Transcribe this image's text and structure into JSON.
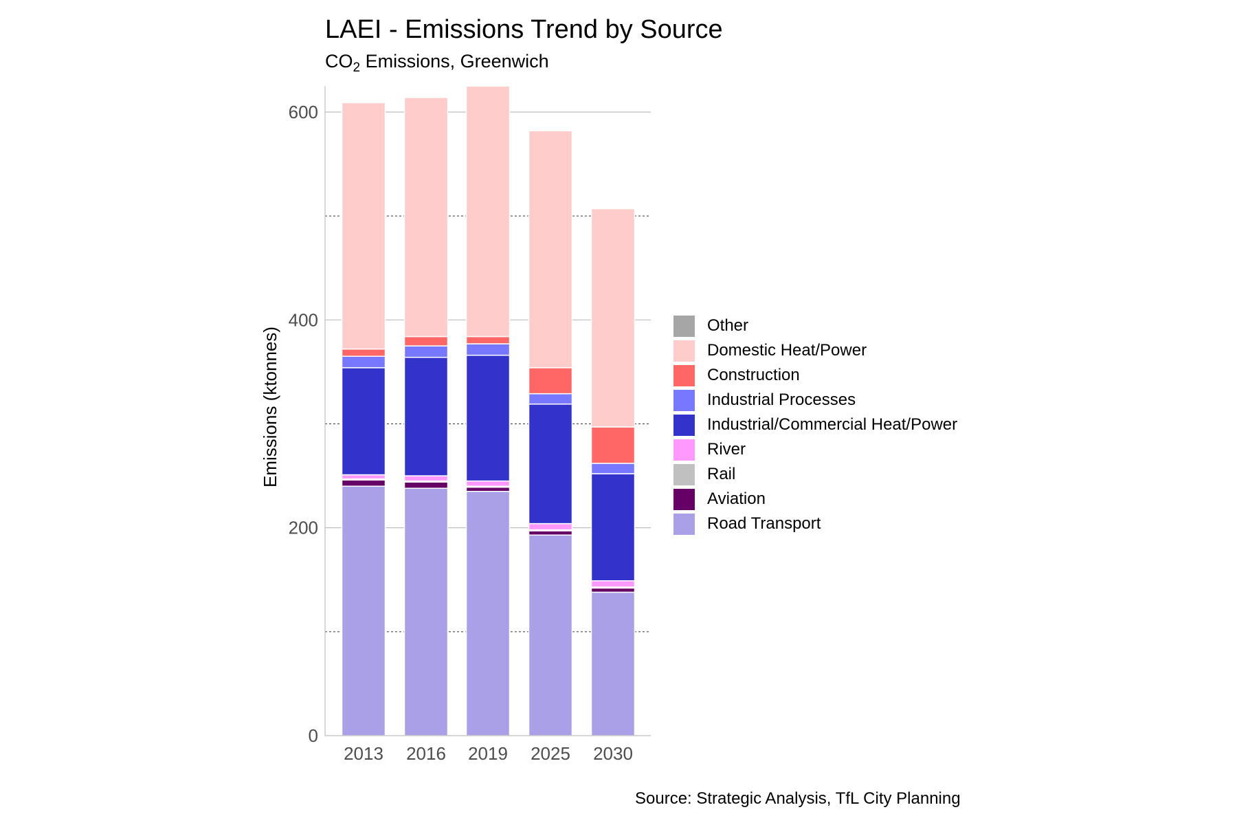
{
  "title": "LAEI - Emissions Trend by Source",
  "subtitle": {
    "prefix": "CO",
    "subscript": "2",
    "suffix": " Emissions, Greenwich"
  },
  "caption": "Source: Strategic Analysis, TfL City Planning",
  "chart_data": {
    "type": "bar",
    "stacked": true,
    "categories": [
      "2013",
      "2016",
      "2019",
      "2025",
      "2030"
    ],
    "ylabel": "Emissions (ktonnes)",
    "xlabel": "",
    "ylim": [
      0,
      625
    ],
    "yticks": [
      0,
      200,
      400,
      600
    ],
    "grid": {
      "major": "solid-horizontal",
      "minor": "dashed-horizontal",
      "minor_ticks": [
        100,
        300,
        500
      ]
    },
    "legend_position": "right",
    "series": [
      {
        "name": "Road Transport",
        "color": "#aaa0e8",
        "values": [
          240,
          238,
          235,
          193,
          138
        ]
      },
      {
        "name": "Aviation",
        "color": "#660066",
        "values": [
          6,
          6,
          4,
          4,
          4
        ]
      },
      {
        "name": "Rail",
        "color": "#c0c0c0",
        "values": [
          1,
          1,
          1,
          1,
          1
        ]
      },
      {
        "name": "River",
        "color": "#ff99ff",
        "values": [
          4,
          5,
          5,
          6,
          6
        ]
      },
      {
        "name": "Industrial/Commercial Heat/Power",
        "color": "#3333cc",
        "values": [
          103,
          114,
          121,
          115,
          103
        ]
      },
      {
        "name": "Industrial Processes",
        "color": "#7777ff",
        "values": [
          11,
          11,
          11,
          10,
          10
        ]
      },
      {
        "name": "Construction",
        "color": "#ff6666",
        "values": [
          7,
          9,
          7,
          25,
          35
        ]
      },
      {
        "name": "Domestic Heat/Power",
        "color": "#ffcccc",
        "values": [
          237,
          230,
          241,
          228,
          210
        ]
      },
      {
        "name": "Other",
        "color": "#a6a6a6",
        "values": [
          0,
          0,
          0,
          0,
          0
        ]
      }
    ]
  }
}
